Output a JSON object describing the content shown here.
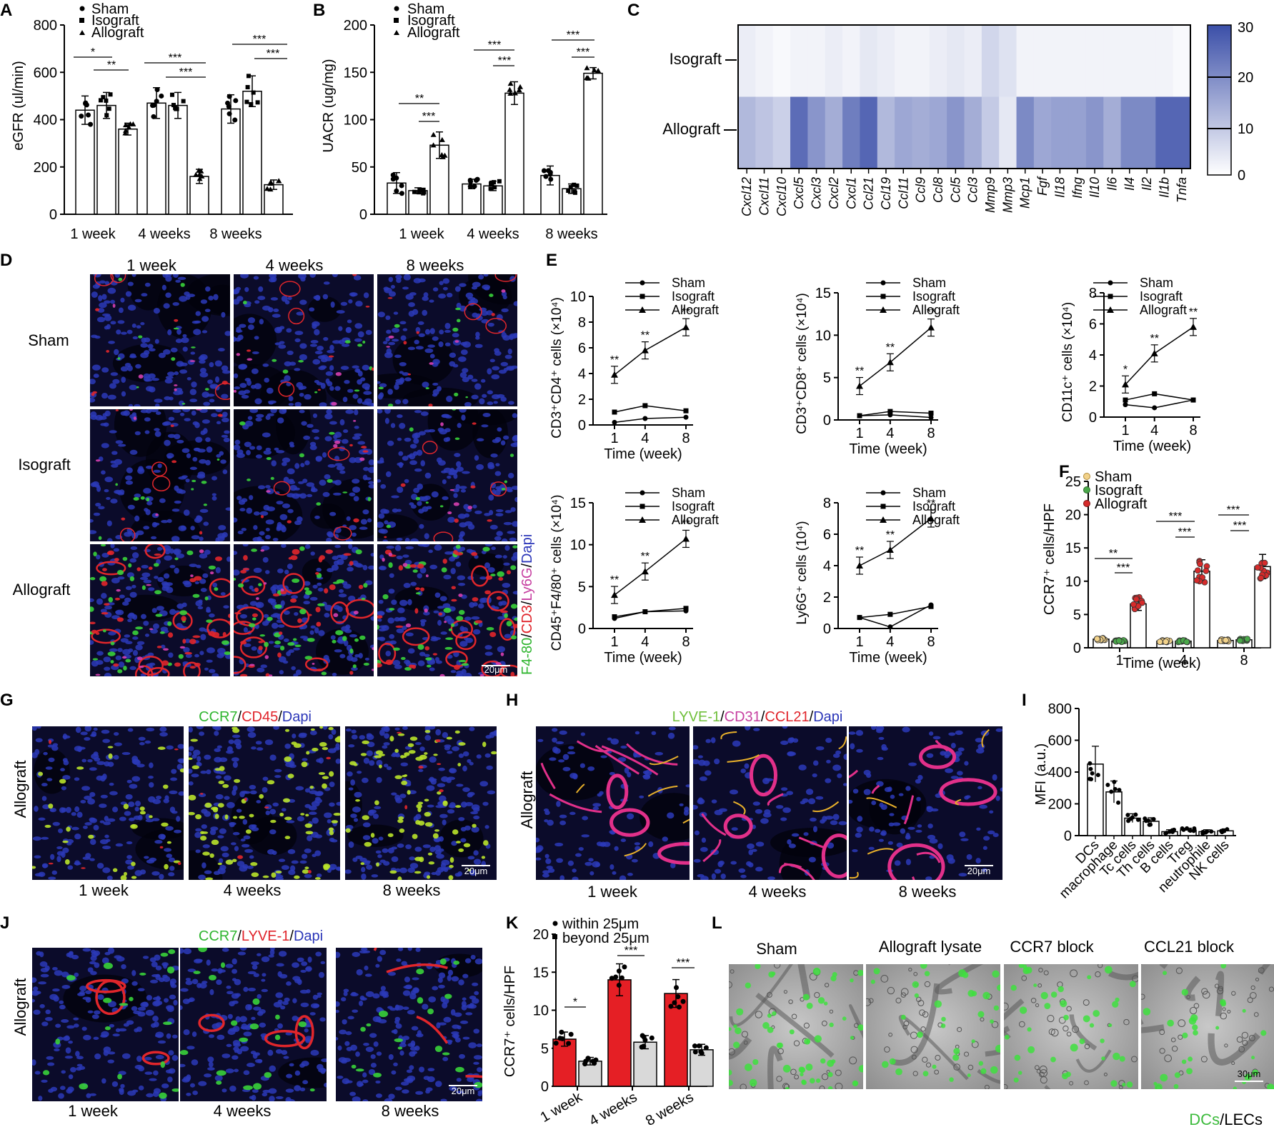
{
  "panels": {
    "A": {
      "letter": "A",
      "ylabel": "eGFR (ul/min)",
      "groups": [
        "1 week",
        "4 weeks",
        "8 weeks"
      ],
      "legend": [
        "Sham",
        "Isograft",
        "Allograft"
      ],
      "yticks": [
        "0",
        "200",
        "400",
        "600",
        "800"
      ],
      "sig": [
        "*",
        "**",
        "***",
        "***",
        "***",
        "***"
      ]
    },
    "B": {
      "letter": "B",
      "ylabel": "UACR (ug/mg)",
      "groups": [
        "1 week",
        "4 weeks",
        "8 weeks"
      ],
      "legend": [
        "Sham",
        "Isograft",
        "Allograft"
      ],
      "yticks": [
        "0",
        "50",
        "100",
        "150",
        "200"
      ],
      "sig": [
        "**",
        "***",
        "***",
        "***",
        "***",
        "***"
      ]
    },
    "C": {
      "letter": "C",
      "rows": [
        "Isograft",
        "Allograft"
      ],
      "genes": [
        "Cxcl12",
        "Cxcl11",
        "Cxcl10",
        "Cxcl5",
        "Cxcl3",
        "Cxcl2",
        "Cxcl1",
        "Ccl21",
        "Ccl19",
        "Ccl11",
        "Ccl9",
        "Ccl8",
        "Ccl5",
        "Ccl3",
        "Mmp9",
        "Mmp3",
        "Mcp1",
        "Fgf",
        "Il18",
        "Ifng",
        "Il10",
        "Il6",
        "Il4",
        "Il2",
        "Il1b",
        "Tnfa"
      ],
      "scale": [
        "30",
        "20",
        "10",
        "0"
      ]
    },
    "D": {
      "letter": "D",
      "cols": [
        "1 week",
        "4 weeks",
        "8 weeks"
      ],
      "rows": [
        "Sham",
        "Isograft",
        "Allograft"
      ],
      "stain": [
        "F4-80",
        "/",
        "CD3",
        "/",
        "Ly6G",
        "/",
        "Dapi"
      ],
      "scalebar": "20μm"
    },
    "E": {
      "letter": "E",
      "legend": [
        "Sham",
        "Isograft",
        "Allograft"
      ],
      "xlabel": "Time (week)",
      "xticks": [
        "1",
        "4",
        "8"
      ],
      "sig": "**",
      "sig_single": "*"
    },
    "F": {
      "letter": "F",
      "legend": [
        "Sham",
        "Isograft",
        "Allograft"
      ],
      "ylabel": "CCR7⁺ cells/HPF",
      "xlabel": "Time (week)",
      "xticks": [
        "1",
        "4",
        "8"
      ],
      "yticks": [
        "0",
        "5",
        "10",
        "15",
        "20",
        "25"
      ],
      "sig": [
        "**",
        "***",
        "***",
        "***",
        "***",
        "***"
      ]
    },
    "G": {
      "letter": "G",
      "stain": [
        "CCR7",
        "/",
        "CD45",
        "/",
        "Dapi"
      ],
      "row": "Allograft",
      "cols": [
        "1 week",
        "4 weeks",
        "8 weeks"
      ],
      "scalebar": "20μm"
    },
    "H": {
      "letter": "H",
      "stain": [
        "LYVE-1",
        "/",
        "CD31",
        "/",
        "CCL21",
        "/",
        "Dapi"
      ],
      "row": "Allograft",
      "cols": [
        "1 week",
        "4 weeks",
        "8 weeks"
      ],
      "scalebar": "20μm"
    },
    "I": {
      "letter": "I",
      "ylabel": "MFI (a.u.)",
      "yticks": [
        "0",
        "200",
        "400",
        "600",
        "800"
      ],
      "cats": [
        "DCs",
        "macrophage",
        "Tc cells",
        "Th cells",
        "B cells",
        "Treg",
        "neutrophile",
        "NK cells"
      ]
    },
    "J": {
      "letter": "J",
      "stain": [
        "CCR7",
        "/",
        "LYVE-1",
        "/",
        "Dapi"
      ],
      "row": "Allograft",
      "cols": [
        "1 week",
        "4 weeks",
        "8 weeks"
      ],
      "scalebar": "20μm"
    },
    "K": {
      "letter": "K",
      "legend": [
        "within 25μm",
        "beyond 25μm"
      ],
      "ylabel": "CCR7⁺ cells/HPF",
      "yticks": [
        "0",
        "5",
        "10",
        "15",
        "20"
      ],
      "cats": [
        "1 week",
        "4 weeks",
        "8 weeks"
      ],
      "sig": [
        "*",
        "***",
        "***"
      ]
    },
    "L": {
      "letter": "L",
      "cols": [
        "Sham",
        "Allograft lysate",
        "CCR7 block",
        "CCL21 block"
      ],
      "stain": [
        "DCs",
        "/",
        "LECs"
      ],
      "scalebar": "30μm"
    }
  },
  "colors": {
    "heat_low": "#ffffff",
    "heat_high": "#3b4fa8",
    "allograft_red": "#d62b2b",
    "isograft_green": "#4aa84a",
    "sham_yellow": "#f2d28a",
    "grey_bar": "#d9d9d9",
    "micro_bg": "#0b0b2a"
  },
  "chart_data": [
    {
      "id": "A",
      "type": "bar",
      "categories": [
        "1 week",
        "4 weeks",
        "8 weeks"
      ],
      "ylabel": "eGFR (ul/min)",
      "ylim": [
        0,
        800
      ],
      "series": [
        {
          "name": "Sham",
          "values": [
            440,
            470,
            445
          ],
          "err": [
            60,
            65,
            60
          ]
        },
        {
          "name": "Isograft",
          "values": [
            460,
            460,
            520
          ],
          "err": [
            55,
            55,
            65
          ]
        },
        {
          "name": "Allograft",
          "values": [
            360,
            160,
            125
          ],
          "err": [
            25,
            30,
            20
          ]
        }
      ]
    },
    {
      "id": "B",
      "type": "bar",
      "categories": [
        "1 week",
        "4 weeks",
        "8 weeks"
      ],
      "ylabel": "UACR (ug/mg)",
      "ylim": [
        0,
        200
      ],
      "series": [
        {
          "name": "Sham",
          "values": [
            33,
            32,
            41
          ],
          "err": [
            11,
            5,
            10
          ]
        },
        {
          "name": "Isograft",
          "values": [
            25,
            30,
            27
          ],
          "err": [
            3,
            5,
            5
          ]
        },
        {
          "name": "Allograft",
          "values": [
            73,
            128,
            149
          ],
          "err": [
            14,
            12,
            6
          ]
        }
      ]
    },
    {
      "id": "C",
      "type": "heatmap",
      "ylim": [
        0,
        30
      ],
      "rows": [
        {
          "name": "Isograft",
          "values": [
            3,
            2,
            1,
            2,
            2,
            3,
            2,
            4,
            3,
            2,
            2,
            3,
            4,
            3,
            7,
            5,
            2,
            2,
            2,
            2,
            2,
            2,
            2,
            2,
            2,
            1
          ]
        },
        {
          "name": "Allograft",
          "values": [
            12,
            10,
            8,
            25,
            18,
            14,
            22,
            26,
            12,
            15,
            14,
            15,
            18,
            14,
            9,
            4,
            20,
            15,
            16,
            16,
            18,
            14,
            20,
            20,
            26,
            26
          ]
        }
      ]
    },
    {
      "id": "E1",
      "type": "line",
      "ylabel": "CD3⁺CD4⁺ cells (×10⁴)",
      "x": [
        1,
        4,
        8
      ],
      "ylim": [
        0,
        10
      ],
      "series": [
        {
          "name": "Sham",
          "values": [
            0.2,
            0.5,
            0.6
          ]
        },
        {
          "name": "Isograft",
          "values": [
            1.0,
            1.5,
            1.1
          ]
        },
        {
          "name": "Allograft",
          "values": [
            3.9,
            5.8,
            7.6
          ]
        }
      ]
    },
    {
      "id": "E2",
      "type": "line",
      "ylabel": "CD3⁺CD8⁺ cells (×10⁴)",
      "x": [
        1,
        4,
        8
      ],
      "ylim": [
        0,
        15
      ],
      "series": [
        {
          "name": "Sham",
          "values": [
            0.5,
            0.6,
            0.3
          ]
        },
        {
          "name": "Isograft",
          "values": [
            0.5,
            1.0,
            0.8
          ]
        },
        {
          "name": "Allograft",
          "values": [
            4.0,
            6.8,
            10.9
          ]
        }
      ]
    },
    {
      "id": "E3",
      "type": "line",
      "ylabel": "CD11c⁺ cells (×10⁴)",
      "x": [
        1,
        4,
        8
      ],
      "ylim": [
        0,
        8
      ],
      "series": [
        {
          "name": "Sham",
          "values": [
            0.8,
            0.6,
            1.1
          ]
        },
        {
          "name": "Isograft",
          "values": [
            1.1,
            1.5,
            1.1
          ]
        },
        {
          "name": "Allograft",
          "values": [
            2.1,
            4.1,
            5.8
          ]
        }
      ]
    },
    {
      "id": "E4",
      "type": "line",
      "ylabel": "CD45⁺F4/80⁺ cells (×10⁴)",
      "x": [
        1,
        4,
        8
      ],
      "ylim": [
        0,
        15
      ],
      "series": [
        {
          "name": "Sham",
          "values": [
            1.2,
            2.0,
            2.1
          ]
        },
        {
          "name": "Isograft",
          "values": [
            1.4,
            2.0,
            2.4
          ]
        },
        {
          "name": "Allograft",
          "values": [
            4.0,
            6.8,
            10.7
          ]
        }
      ]
    },
    {
      "id": "E5",
      "type": "line",
      "ylabel": "Ly6G⁺ cells (10⁴)",
      "x": [
        1,
        4,
        8
      ],
      "ylim": [
        0,
        8
      ],
      "series": [
        {
          "name": "Sham",
          "values": [
            0.7,
            0.1,
            1.5
          ]
        },
        {
          "name": "Isograft",
          "values": [
            0.7,
            0.9,
            1.4
          ]
        },
        {
          "name": "Allograft",
          "values": [
            4.0,
            5.0,
            7.0
          ]
        }
      ]
    },
    {
      "id": "F",
      "type": "bar",
      "categories": [
        "1",
        "4",
        "8"
      ],
      "ylabel": "CCR7⁺ cells/HPF",
      "ylim": [
        0,
        25
      ],
      "series": [
        {
          "name": "Sham",
          "values": [
            1.3,
            1.0,
            1.1
          ]
        },
        {
          "name": "Isograft",
          "values": [
            1.0,
            1.0,
            1.2
          ]
        },
        {
          "name": "Allograft",
          "values": [
            6.6,
            11.5,
            12.2
          ]
        }
      ]
    },
    {
      "id": "I",
      "type": "bar",
      "categories": [
        "DCs",
        "macrophage",
        "Tc cells",
        "Th cells",
        "B cells",
        "Treg",
        "neutrophile",
        "NK cells"
      ],
      "ylabel": "MFI (a.u.)",
      "ylim": [
        0,
        800
      ],
      "values": [
        450,
        275,
        110,
        90,
        25,
        35,
        25,
        30
      ]
    },
    {
      "id": "K",
      "type": "bar",
      "categories": [
        "1 week",
        "4 weeks",
        "8 weeks"
      ],
      "ylabel": "CCR7⁺ cells/HPF",
      "ylim": [
        0,
        20
      ],
      "series": [
        {
          "name": "within 25μm",
          "values": [
            6.2,
            14.0,
            12.2
          ]
        },
        {
          "name": "beyond 25μm",
          "values": [
            3.3,
            5.8,
            4.8
          ]
        }
      ]
    }
  ]
}
